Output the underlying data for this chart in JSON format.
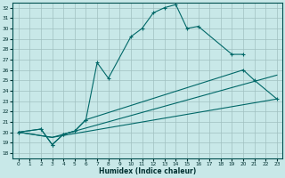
{
  "xlabel": "Humidex (Indice chaleur)",
  "xlim": [
    -0.5,
    23.5
  ],
  "ylim": [
    17.5,
    32.5
  ],
  "yticks": [
    18,
    19,
    20,
    21,
    22,
    23,
    24,
    25,
    26,
    27,
    28,
    29,
    30,
    31,
    32
  ],
  "xticks": [
    0,
    1,
    2,
    3,
    4,
    5,
    6,
    7,
    8,
    9,
    10,
    11,
    12,
    13,
    14,
    15,
    16,
    17,
    18,
    19,
    20,
    21,
    22,
    23
  ],
  "bg_color": "#c8e8e8",
  "grid_color": "#a0c0c0",
  "line_color": "#006868",
  "line1_x": [
    0,
    2,
    3,
    4,
    5,
    6,
    7,
    8,
    10,
    11,
    12,
    13,
    14,
    15,
    16,
    19,
    20
  ],
  "line1_y": [
    20.0,
    20.3,
    18.8,
    19.8,
    20.1,
    21.2,
    26.7,
    25.2,
    29.2,
    30.0,
    31.5,
    32.0,
    32.3,
    30.0,
    30.2,
    27.5,
    27.5
  ],
  "line2_x": [
    0,
    2,
    3,
    4,
    5,
    6,
    20,
    21,
    23
  ],
  "line2_y": [
    20.0,
    20.3,
    18.8,
    19.8,
    20.1,
    21.2,
    26.0,
    25.0,
    23.2
  ],
  "line3_x": [
    0,
    3,
    23
  ],
  "line3_y": [
    20.0,
    19.5,
    25.5
  ],
  "line4_x": [
    0,
    3,
    23
  ],
  "line4_y": [
    20.0,
    19.5,
    23.2
  ]
}
